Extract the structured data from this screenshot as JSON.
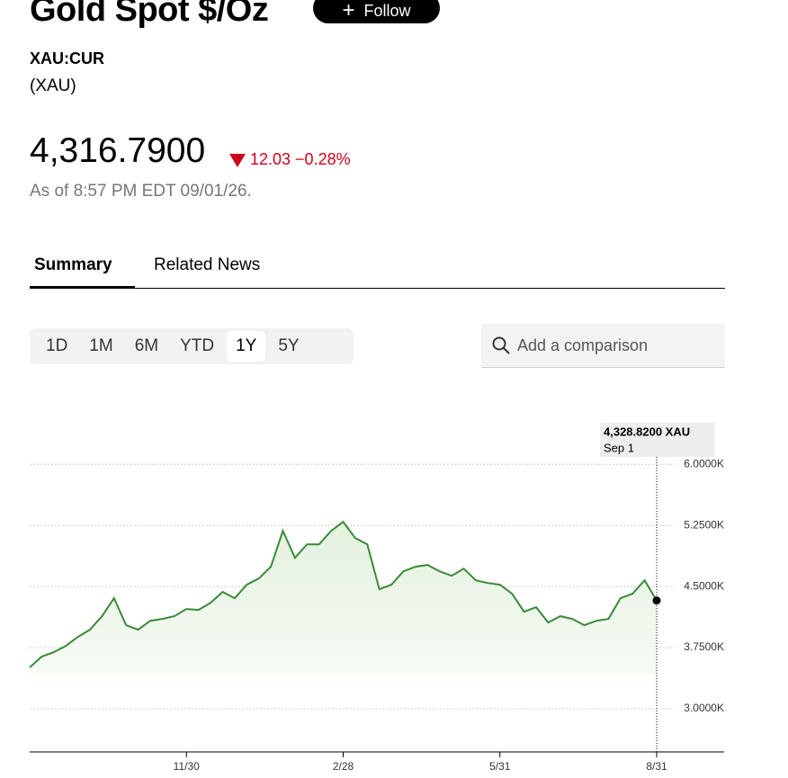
{
  "header": {
    "title": "Gold Spot $/Oz",
    "follow": "Follow",
    "ticker": "XAU:CUR",
    "short_name": "(XAU)",
    "price": "4,316.7900",
    "change": "12.03",
    "change_percent": "−0.28%",
    "as_of": "As of 8:57 PM EDT 09/01/26."
  },
  "tabs": [
    "Summary",
    "Related News"
  ],
  "range_buttons": [
    "1D",
    "1M",
    "6M",
    "YTD",
    "1Y",
    "5Y"
  ],
  "search_placeholder": "Add a comparison",
  "chart_data": {
    "type": "line",
    "categories": [
      null,
      null,
      null,
      null,
      null,
      null,
      null,
      null,
      null,
      null,
      null,
      null,
      null,
      "11/30",
      null,
      null,
      null,
      null,
      null,
      null,
      null,
      null,
      null,
      null,
      null,
      null,
      "2/28",
      null,
      null,
      null,
      null,
      null,
      null,
      null,
      null,
      null,
      null,
      null,
      null,
      "5/31",
      null,
      null,
      null,
      null,
      null,
      null,
      null,
      null,
      null,
      null,
      null,
      null,
      "8/31"
    ],
    "series": [
      {
        "color": "#3a8a3a",
        "values": [
          3507,
          3640,
          3695,
          3772,
          3882,
          3970,
          4136,
          4357,
          4026,
          3970,
          4080,
          4103,
          4136,
          4224,
          4213,
          4301,
          4434,
          4357,
          4522,
          4599,
          4743,
          5184,
          4853,
          5018,
          5018,
          5184,
          5294,
          5096,
          5018,
          4467,
          4522,
          4687,
          4743,
          4765,
          4687,
          4632,
          4720,
          4577,
          4544,
          4522,
          4412,
          4191,
          4247,
          4059,
          4136,
          4103,
          4026,
          4080,
          4103,
          4357,
          4412,
          4577,
          4328.82
        ],
        "value_labels": [
          null,
          null,
          null,
          null,
          null,
          null,
          null,
          null,
          null,
          null,
          null,
          null,
          null,
          null,
          null,
          null,
          null,
          null,
          null,
          null,
          null,
          null,
          null,
          null,
          null,
          null,
          null,
          null,
          null,
          null,
          null,
          null,
          null,
          null,
          null,
          null,
          null,
          null,
          null,
          null,
          null,
          null,
          null,
          null,
          null,
          null,
          null,
          null,
          null,
          null,
          null,
          null,
          "4,328.8200 XAU"
        ]
      }
    ],
    "tooltip_date": "Sep 1",
    "ylim": [
      2470,
      6500
    ],
    "yticks": [
      {
        "value": 3000,
        "label": "3.0000K"
      },
      {
        "value": 3750,
        "label": "3.7500K"
      },
      {
        "value": 4500,
        "label": "4.5000K"
      },
      {
        "value": 5250,
        "label": "5.2500K"
      },
      {
        "value": 6000,
        "label": "6.0000K"
      }
    ],
    "grid": true
  }
}
